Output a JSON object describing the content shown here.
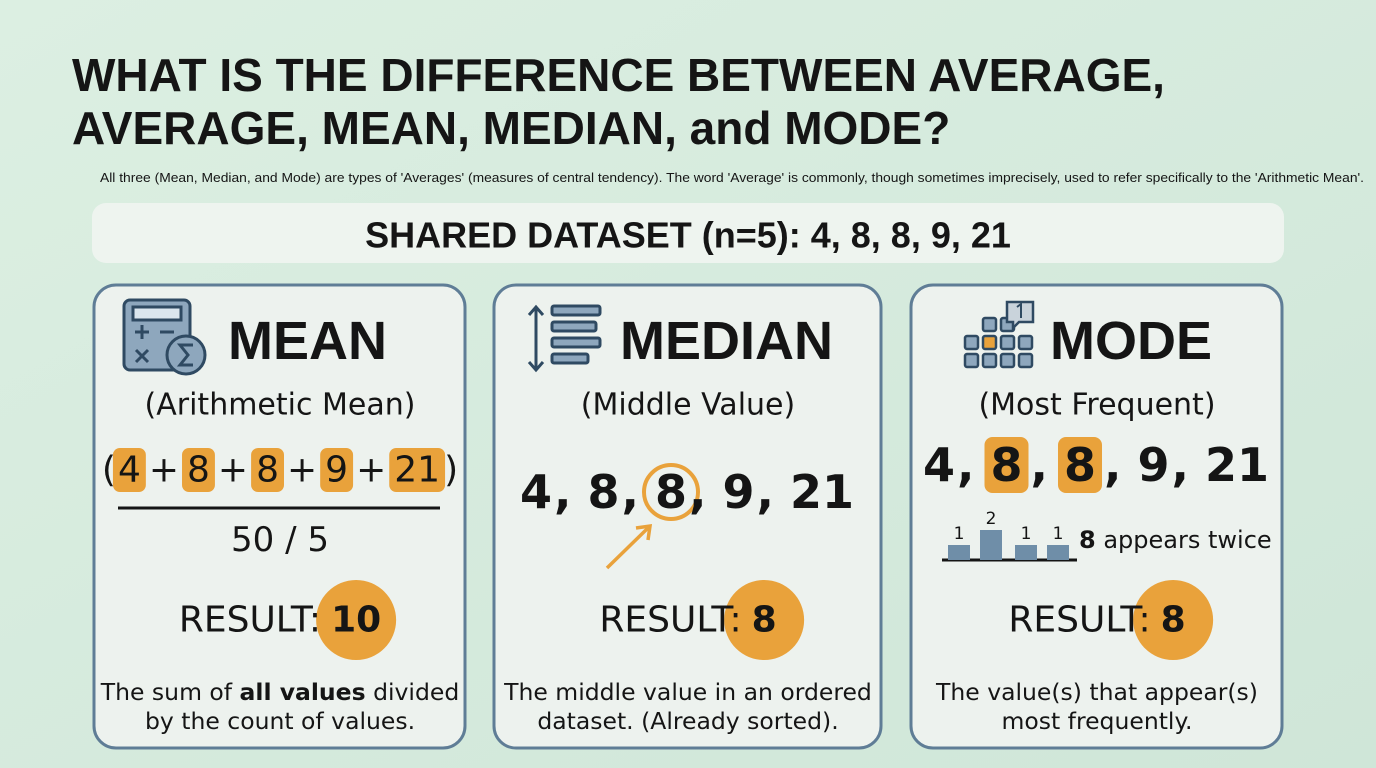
{
  "header": {
    "title": [
      "WHAT IS THE DIFFERENCE BETWEEN AVERAGE,",
      "AVERAGE, MEAN, MEDIAN, and MODE?"
    ],
    "subtitle": "All three (Mean, Median, and Mode) are types of 'Averages' (measures of central tendency). The word 'Average' is commonly, though sometimes imprecisely, used to refer specifically to the 'Arithmetic Mean'."
  },
  "dataset": "SHARED DATASET (n=5): 4, 8, 8, 9, 21",
  "cards": [
    {
      "title": "MEAN",
      "subtitle": "(Arithmetic Mean)",
      "formula": {
        "open": "(",
        "terms": [
          "4",
          "8",
          "8",
          "9",
          "21"
        ],
        "operator": "+",
        "close": ")",
        "denominator": "50 / 5"
      },
      "result_label": "RESULT:",
      "result": "10",
      "description": [
        [
          {
            "text": "The sum of "
          },
          {
            "text": "all values",
            "bold": true
          },
          {
            "text": " divided"
          }
        ],
        [
          {
            "text": "by the count of values."
          }
        ]
      ]
    },
    {
      "title": "MEDIAN",
      "subtitle": "(Middle Value)",
      "sequence": [
        "4",
        "8",
        "8",
        "9",
        "21"
      ],
      "separator": ",",
      "highlight": [
        2
      ],
      "result_label": "RESULT:",
      "result": "8",
      "description": [
        [
          {
            "text": "The middle value in an ordered"
          }
        ],
        [
          {
            "text": "dataset. (Already sorted)."
          }
        ]
      ]
    },
    {
      "title": "MODE",
      "subtitle": "(Most Frequent)",
      "sequence": [
        "4",
        "8",
        "8",
        "9",
        "21"
      ],
      "separator": ",",
      "highlight": [
        1,
        2
      ],
      "frequency": {
        "counts": [
          1,
          2,
          1,
          1
        ]
      },
      "note": [
        {
          "text": "8",
          "bold": true
        },
        {
          "text": " appears twice"
        }
      ],
      "result_label": "RESULT:",
      "result": "8",
      "description": [
        [
          {
            "text": "The value(s) that appear(s)"
          }
        ],
        [
          {
            "text": "most frequently."
          }
        ]
      ]
    }
  ]
}
